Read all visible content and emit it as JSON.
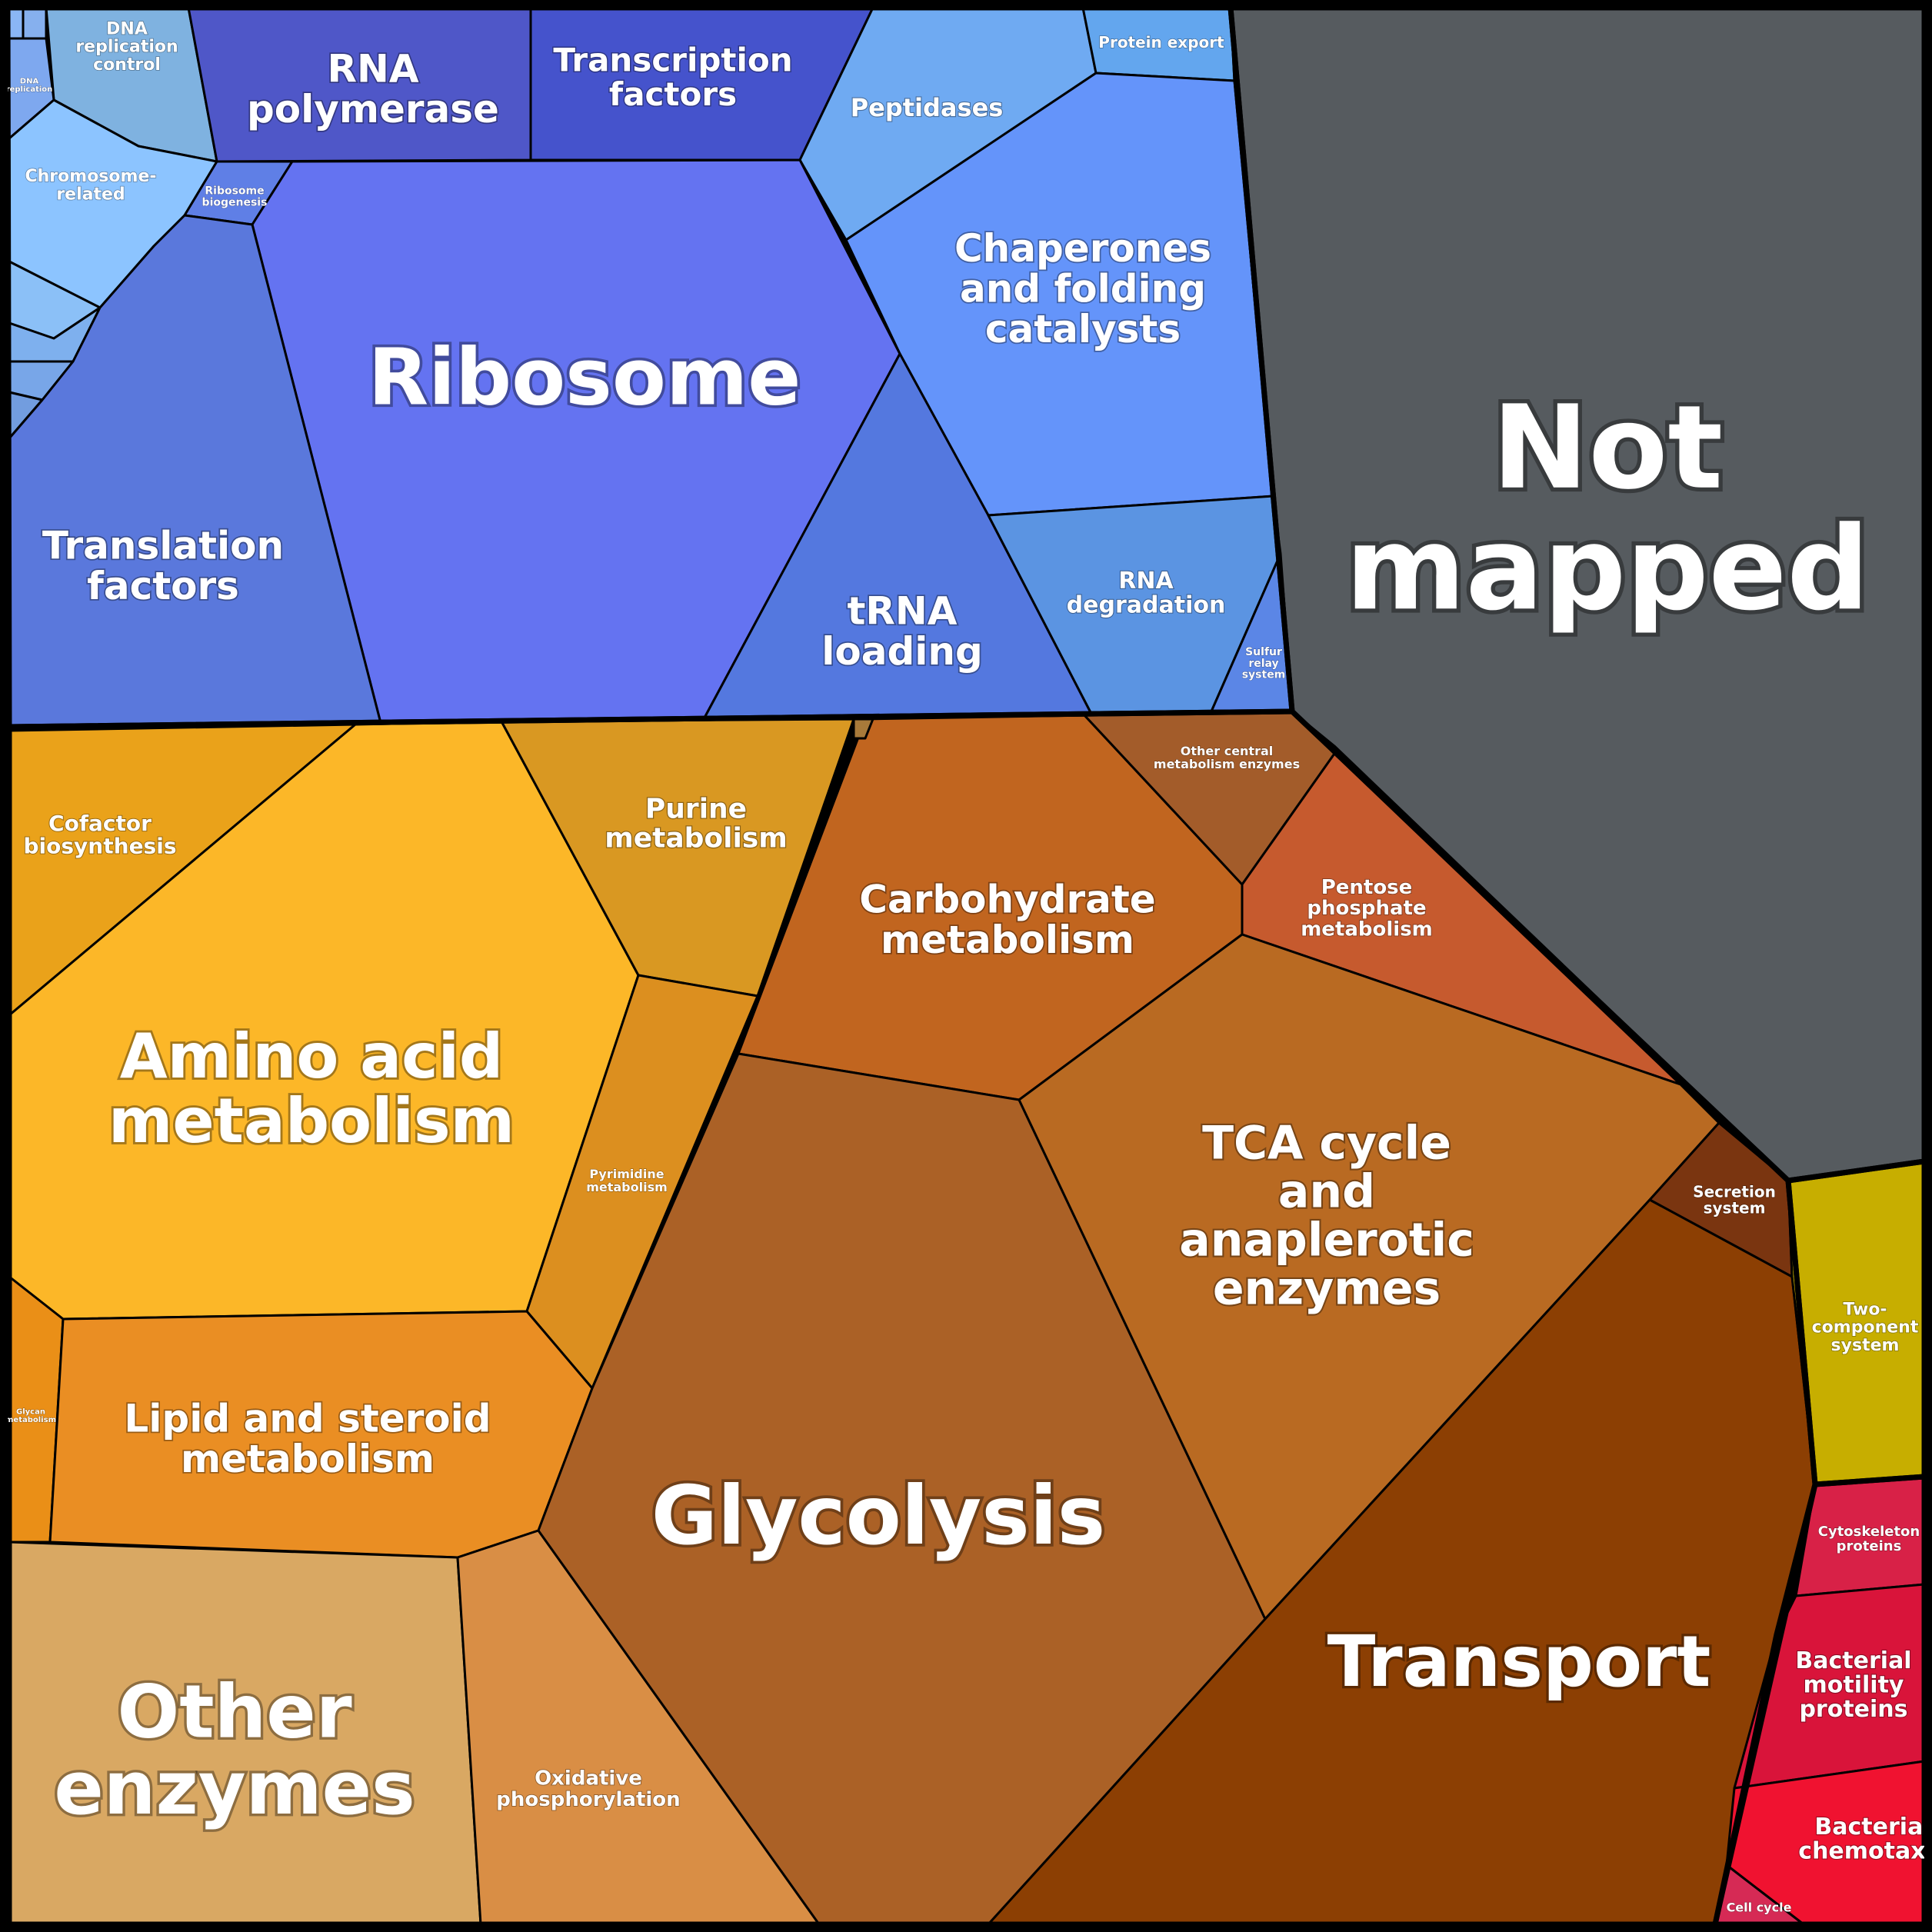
{
  "cells": [
    {
      "id": "dna-replication-control",
      "label": "DNA\nreplication\ncontrol",
      "color": "#7fb2e0"
    },
    {
      "id": "dna-replication",
      "label": "DNA\nreplication",
      "color": "#7ea8ef"
    },
    {
      "id": "chromosome-related",
      "label": "Chromosome-\nrelated",
      "color": "#8cc4ff"
    },
    {
      "id": "small-top-cell-a",
      "label": "",
      "color": "#8ab6f5"
    },
    {
      "id": "small-top-cell-b",
      "label": "",
      "color": "#86b0ee"
    },
    {
      "id": "small-left-cell-1",
      "label": "",
      "color": "#8bc0f7"
    },
    {
      "id": "small-left-cell-2",
      "label": "",
      "color": "#7eb0ee"
    },
    {
      "id": "small-left-cell-3",
      "label": "",
      "color": "#78a6e8"
    },
    {
      "id": "small-left-cell-4",
      "label": "",
      "color": "#729ddf"
    },
    {
      "id": "rna-polymerase",
      "label": "RNA\npolymerase",
      "color": "#4f57c8"
    },
    {
      "id": "transcription-factors",
      "label": "Transcription\nfactors",
      "color": "#4553cc"
    },
    {
      "id": "peptidases",
      "label": "Peptidases",
      "color": "#6faaf2"
    },
    {
      "id": "protein-export",
      "label": "Protein export",
      "color": "#63a6ee"
    },
    {
      "id": "chaperones",
      "label": "Chaperones\nand folding\ncatalysts",
      "color": "#6494fa"
    },
    {
      "id": "ribosome-biogenesis",
      "label": "Ribosome\nbiogenesis",
      "color": "#5f7fe6"
    },
    {
      "id": "ribosome",
      "label": "Ribosome",
      "color": "#6473f1"
    },
    {
      "id": "translation-factors",
      "label": "Translation\nfactors",
      "color": "#5a78dc"
    },
    {
      "id": "trna-loading",
      "label": "tRNA\nloading",
      "color": "#5478df"
    },
    {
      "id": "rna-degradation",
      "label": "RNA\ndegradation",
      "color": "#5b94e2"
    },
    {
      "id": "sulfur-relay",
      "label": "Sulfur\nrelay\nsystem",
      "color": "#5b86e6"
    },
    {
      "id": "not-mapped",
      "label": "Not\nmapped",
      "color": "#565b5f"
    },
    {
      "id": "cofactor-biosynthesis",
      "label": "Cofactor\nbiosynthesis",
      "color": "#eaa21a"
    },
    {
      "id": "amino-acid-metabolism",
      "label": "Amino acid\nmetabolism",
      "color": "#fcb728"
    },
    {
      "id": "purine-metabolism",
      "label": "Purine\nmetabolism",
      "color": "#d99822"
    },
    {
      "id": "pyrimidine-metabolism",
      "label": "Pyrimidine\nmetabolism",
      "color": "#dc8f1f"
    },
    {
      "id": "glycan-metabolism",
      "label": "Glycan\nmetabolism",
      "color": "#ea8f17"
    },
    {
      "id": "lipid-steroid-metabolism",
      "label": "Lipid and steroid\nmetabolism",
      "color": "#ea8e23"
    },
    {
      "id": "other-enzymes",
      "label": "Other\nenzymes",
      "color": "#d9a863"
    },
    {
      "id": "oxidative-phosphorylation",
      "label": "Oxidative\nphosphorylation",
      "color": "#d98e45"
    },
    {
      "id": "carbohydrate-metabolism",
      "label": "Carbohydrate\nmetabolism",
      "color": "#c1651f"
    },
    {
      "id": "other-central-metabolism",
      "label": "Other central\nmetabolism enzymes",
      "color": "#a35c2a"
    },
    {
      "id": "pentose-phosphate",
      "label": "Pentose\nphosphate\nmetabolism",
      "color": "#c65a2e"
    },
    {
      "id": "glycolysis",
      "label": "Glycolysis",
      "color": "#ab6126"
    },
    {
      "id": "tca-cycle",
      "label": "TCA cycle\nand\nanaplerotic\nenzymes",
      "color": "#b96a22"
    },
    {
      "id": "secretion-system",
      "label": "Secretion\nsystem",
      "color": "#7a3510"
    },
    {
      "id": "transport",
      "label": "Transport",
      "color": "#8c3f03"
    },
    {
      "id": "two-component-system",
      "label": "Two-\ncomponent\nsystem",
      "color": "#c7ae00"
    },
    {
      "id": "cytoskeleton-proteins",
      "label": "Cytoskeleton\nproteins",
      "color": "#d82147"
    },
    {
      "id": "bacterial-motility",
      "label": "Bacterial\nmotility\nproteins",
      "color": "#d9143a"
    },
    {
      "id": "bacterial-chemotaxis",
      "label": "Bacterial\nchemotaxis",
      "color": "#f01230"
    },
    {
      "id": "cell-cycle",
      "label": "Cell cycle",
      "color": "#d62a55"
    },
    {
      "id": "tiny-sliver",
      "label": "",
      "color": "#a87a3a"
    }
  ]
}
